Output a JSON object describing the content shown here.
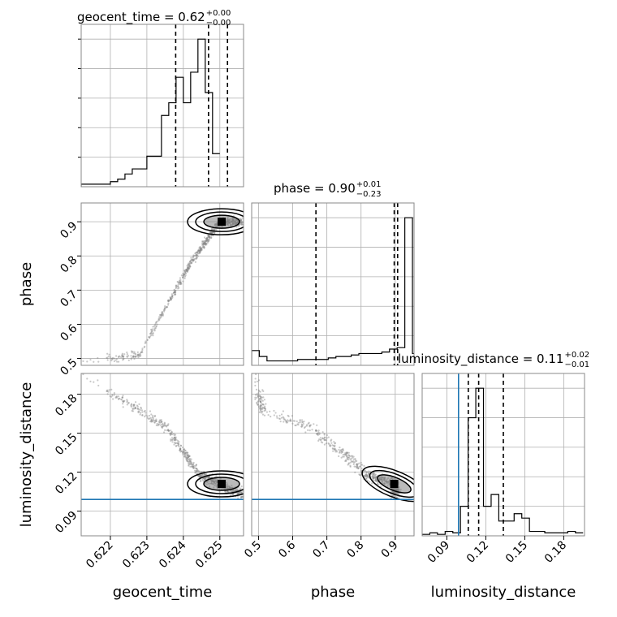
{
  "chart_data": {
    "type": "corner",
    "parameters": [
      "geocent_time",
      "phase",
      "luminosity_distance"
    ],
    "axis_labels": [
      "geocent_time",
      "phase",
      "luminosity_distance"
    ],
    "grid": true,
    "colors": {
      "hist": "#000000",
      "truth": "#1f77b4",
      "grid": "#b0b0b0",
      "samples": "#888888"
    },
    "truth": {
      "luminosity_distance": 0.099
    },
    "ranges": {
      "geocent_time": [
        0.6212,
        0.62565
      ],
      "phase": [
        0.48,
        0.955
      ],
      "luminosity_distance": [
        0.071,
        0.196
      ]
    },
    "ticks": {
      "geocent_time": [
        0.622,
        0.623,
        0.624,
        0.625
      ],
      "phase": [
        0.5,
        0.6,
        0.7,
        0.8,
        0.9
      ],
      "luminosity_distance": [
        0.09,
        0.12,
        0.15,
        0.18
      ]
    },
    "tick_labels": {
      "geocent_time": [
        "0.622",
        "0.623",
        "0.624",
        "0.625"
      ],
      "phase": [
        "0.5",
        "0.6",
        "0.7",
        "0.8",
        "0.9"
      ],
      "luminosity_distance": [
        "0.09",
        "0.12",
        "0.15",
        "0.18"
      ]
    },
    "titles": [
      {
        "param": "geocent_time",
        "text": "geocent_time = 0.62",
        "upper": "+0.00",
        "lower": "−0.00"
      },
      {
        "param": "phase",
        "text": "phase = 0.90",
        "upper": "+0.01",
        "lower": "−0.23"
      },
      {
        "param": "luminosity_distance",
        "text": "luminosity_distance = 0.11",
        "upper": "+0.02",
        "lower": "−0.01"
      }
    ],
    "quantiles": {
      "geocent_time": [
        0.62379,
        0.62469,
        0.62521
      ],
      "phase": [
        0.668,
        0.897,
        0.907
      ],
      "luminosity_distance": [
        0.1065,
        0.1145,
        0.1335
      ]
    },
    "histograms": {
      "geocent_time": {
        "edges_start": 0.6212,
        "bin_width": 0.0002,
        "counts": [
          1,
          1,
          1,
          1,
          2,
          3,
          5,
          7,
          7,
          12,
          12,
          28,
          33,
          43,
          33,
          45,
          58,
          37,
          13
        ]
      },
      "phase": {
        "edges_start": 0.48,
        "bin_width": 0.0224,
        "counts": [
          10,
          6,
          3,
          3,
          3,
          3,
          4,
          4,
          4,
          4,
          5,
          6,
          6,
          7,
          8,
          8,
          8,
          9,
          11,
          12,
          100,
          8
        ]
      },
      "luminosity_distance": {
        "edges_start": 0.071,
        "bin_width": 0.0059,
        "counts": [
          1,
          2,
          1,
          3,
          2,
          20,
          80,
          100,
          20,
          28,
          10,
          10,
          15,
          12,
          3,
          3,
          2,
          2,
          2,
          3,
          2
        ]
      }
    }
  }
}
